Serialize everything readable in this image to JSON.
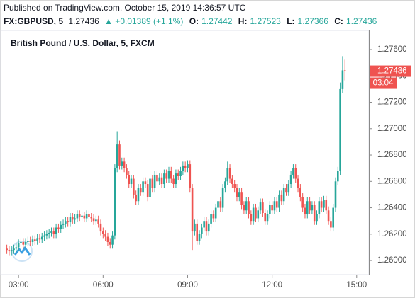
{
  "chart_data": {
    "type": "candlestick",
    "title": "Published on TradingView.com, October 15, 2019 14:36:57 UTC",
    "header": {
      "symbol": "FX:GBPUSD, 5",
      "last": "1.27436",
      "change": "▲ +0.01389 (+1.1%)",
      "ohlc": [
        {
          "label": "O:",
          "value": "1.27442"
        },
        {
          "label": "H:",
          "value": "1.27523"
        },
        {
          "label": "L:",
          "value": "1.27366"
        },
        {
          "label": "C:",
          "value": "1.27436"
        }
      ]
    },
    "legend": "British Pound / U.S. Dollar, 5, FXCM",
    "up_color": "#26a69a",
    "down_color": "#ef5350",
    "x": [
      155,
      160,
      165,
      170,
      175,
      180,
      185,
      190,
      195,
      200,
      205,
      210,
      215,
      220,
      225,
      230,
      235,
      240,
      245,
      250,
      255,
      260,
      265,
      270,
      275,
      280,
      285,
      290,
      295,
      300,
      305,
      310,
      315,
      320,
      325,
      330,
      335,
      340,
      345,
      350,
      355,
      360,
      365,
      370,
      375,
      380,
      385,
      390,
      395,
      400,
      405,
      410,
      415,
      420,
      425,
      430,
      435,
      440,
      445,
      450,
      455,
      460,
      465,
      470,
      475,
      480,
      485,
      490,
      495,
      500,
      505,
      510,
      515,
      520,
      525,
      530,
      535,
      540,
      545,
      550,
      555,
      560,
      565,
      570,
      575,
      580,
      585,
      590,
      595,
      600,
      605,
      610,
      615,
      620,
      625,
      630,
      635,
      640,
      645,
      650,
      655,
      660,
      665,
      670,
      675,
      680,
      685,
      690,
      695,
      700,
      705,
      710,
      715,
      720,
      725,
      730,
      735,
      740,
      745,
      750,
      755,
      760,
      765,
      770,
      775,
      780,
      785,
      790,
      795,
      800,
      805,
      810,
      815,
      820,
      825,
      830,
      835,
      840,
      845,
      850,
      855,
      860,
      865,
      870,
      875
    ],
    "open": [
      1.2609,
      1.2608,
      1.2607,
      1.2608,
      1.2609,
      1.261,
      1.2613,
      1.2614,
      1.2612,
      1.2614,
      1.2615,
      1.2614,
      1.2616,
      1.2615,
      1.2617,
      1.2616,
      1.2618,
      1.2619,
      1.262,
      1.2621,
      1.2622,
      1.262,
      1.2625,
      1.2624,
      1.2627,
      1.2628,
      1.263,
      1.2629,
      1.2633,
      1.2631,
      1.2632,
      1.2635,
      1.2633,
      1.2634,
      1.2632,
      1.2635,
      1.2633,
      1.2632,
      1.263,
      1.2631,
      1.2628,
      1.2622,
      1.262,
      1.2618,
      1.2614,
      1.2612,
      1.2619,
      1.267,
      1.2688,
      1.2672,
      1.2675,
      1.267,
      1.2665,
      1.2658,
      1.2662,
      1.265,
      1.2645,
      1.2655,
      1.2652,
      1.266,
      1.2658,
      1.2648,
      1.2662,
      1.2655,
      1.2665,
      1.266,
      1.2663,
      1.2658,
      1.2666,
      1.2662,
      1.2668,
      1.2662,
      1.2658,
      1.2666,
      1.2664,
      1.2668,
      1.2672,
      1.267,
      1.2673,
      1.2655,
      1.2622,
      1.2628,
      1.2615,
      1.262,
      1.2625,
      1.263,
      1.2622,
      1.2628,
      1.2635,
      1.2632,
      1.264,
      1.2645,
      1.264,
      1.2655,
      1.266,
      1.267,
      1.2662,
      1.2658,
      1.2655,
      1.2648,
      1.2652,
      1.2642,
      1.2638,
      1.2645,
      1.2635,
      1.263,
      1.264,
      1.2632,
      1.2638,
      1.2644,
      1.2636,
      1.263,
      1.2635,
      1.2642,
      1.2638,
      1.2645,
      1.264,
      1.265,
      1.2645,
      1.2655,
      1.2652,
      1.2658,
      1.2665,
      1.267,
      1.2662,
      1.2655,
      1.2648,
      1.264,
      1.2635,
      1.2645,
      1.2638,
      1.2642,
      1.263,
      1.2635,
      1.2645,
      1.264,
      1.2646,
      1.2638,
      1.263,
      1.2625,
      1.264,
      1.266,
      1.2668,
      1.273,
      1.27442
    ],
    "high": [
      1.2612,
      1.2611,
      1.2611,
      1.2612,
      1.2613,
      1.2616,
      1.2617,
      1.2617,
      1.2617,
      1.2618,
      1.2618,
      1.2619,
      1.2619,
      1.262,
      1.262,
      1.2621,
      1.2622,
      1.2623,
      1.2624,
      1.2625,
      1.2625,
      1.2628,
      1.2628,
      1.263,
      1.2631,
      1.2633,
      1.2633,
      1.2636,
      1.2636,
      1.2635,
      1.2638,
      1.2638,
      1.2637,
      1.2637,
      1.2638,
      1.2638,
      1.2636,
      1.2635,
      1.2634,
      1.2634,
      1.2631,
      1.2625,
      1.2623,
      1.2621,
      1.2617,
      1.2622,
      1.2673,
      1.2698,
      1.2691,
      1.2678,
      1.2678,
      1.2673,
      1.2668,
      1.2665,
      1.2665,
      1.2653,
      1.2658,
      1.2658,
      1.2663,
      1.2663,
      1.2661,
      1.2665,
      1.2665,
      1.2668,
      1.2668,
      1.2666,
      1.2666,
      1.2669,
      1.2669,
      1.2671,
      1.2671,
      1.2665,
      1.2669,
      1.2669,
      1.2671,
      1.2675,
      1.2675,
      1.2676,
      1.2676,
      1.2658,
      1.2631,
      1.2631,
      1.2623,
      1.2628,
      1.2633,
      1.2633,
      1.2631,
      1.2638,
      1.2638,
      1.2643,
      1.2648,
      1.2648,
      1.2658,
      1.2663,
      1.2675,
      1.2673,
      1.2665,
      1.2661,
      1.2658,
      1.2655,
      1.2655,
      1.2645,
      1.2648,
      1.2648,
      1.2638,
      1.2643,
      1.2643,
      1.2641,
      1.2647,
      1.2647,
      1.2639,
      1.2638,
      1.2645,
      1.2645,
      1.2648,
      1.2648,
      1.2653,
      1.2653,
      1.2658,
      1.2658,
      1.2661,
      1.2668,
      1.2673,
      1.2673,
      1.2665,
      1.2658,
      1.2651,
      1.2643,
      1.2648,
      1.2648,
      1.2645,
      1.2645,
      1.2638,
      1.2648,
      1.2648,
      1.2649,
      1.2649,
      1.2641,
      1.2633,
      1.2643,
      1.2663,
      1.2671,
      1.2735,
      1.2755,
      1.27523
    ],
    "low": [
      1.2605,
      1.2604,
      1.2604,
      1.2605,
      1.2606,
      1.2607,
      1.261,
      1.2609,
      1.2609,
      1.2611,
      1.2611,
      1.2611,
      1.2612,
      1.2612,
      1.2613,
      1.2613,
      1.2615,
      1.2616,
      1.2617,
      1.2618,
      1.2617,
      1.2617,
      1.2621,
      1.2621,
      1.2624,
      1.2625,
      1.2626,
      1.2626,
      1.2628,
      1.2628,
      1.2629,
      1.263,
      1.263,
      1.2629,
      1.2629,
      1.263,
      1.2629,
      1.2627,
      1.2627,
      1.2625,
      1.2619,
      1.2617,
      1.2615,
      1.2611,
      1.2609,
      1.2609,
      1.2616,
      1.2667,
      1.2669,
      1.2669,
      1.2667,
      1.2662,
      1.2655,
      1.2655,
      1.2647,
      1.2642,
      1.2642,
      1.2649,
      1.2649,
      1.2655,
      1.2645,
      1.2645,
      1.2652,
      1.2652,
      1.2657,
      1.2657,
      1.2655,
      1.2655,
      1.2659,
      1.2659,
      1.2659,
      1.2655,
      1.2655,
      1.2661,
      1.2661,
      1.2665,
      1.2667,
      1.2667,
      1.2652,
      1.2608,
      1.2619,
      1.2612,
      1.2612,
      1.2617,
      1.2622,
      1.2619,
      1.2619,
      1.2625,
      1.2629,
      1.2629,
      1.2637,
      1.2637,
      1.2637,
      1.2652,
      1.2657,
      1.2659,
      1.2655,
      1.2652,
      1.2645,
      1.2645,
      1.2639,
      1.2635,
      1.2635,
      1.2632,
      1.2627,
      1.2627,
      1.2629,
      1.2629,
      1.2635,
      1.2633,
      1.2627,
      1.2627,
      1.2632,
      1.2635,
      1.2635,
      1.2637,
      1.2637,
      1.2642,
      1.2642,
      1.2649,
      1.2649,
      1.2655,
      1.2662,
      1.2659,
      1.2652,
      1.2645,
      1.2637,
      1.2632,
      1.2632,
      1.2635,
      1.2635,
      1.2627,
      1.2627,
      1.2632,
      1.2637,
      1.2637,
      1.2635,
      1.2627,
      1.2622,
      1.2622,
      1.2637,
      1.2657,
      1.2665,
      1.2727,
      1.27366
    ],
    "close": [
      1.2608,
      1.2607,
      1.2608,
      1.2609,
      1.261,
      1.2613,
      1.2614,
      1.2612,
      1.2614,
      1.2615,
      1.2614,
      1.2616,
      1.2615,
      1.2617,
      1.2616,
      1.2618,
      1.2619,
      1.262,
      1.2621,
      1.2622,
      1.262,
      1.2625,
      1.2624,
      1.2627,
      1.2628,
      1.263,
      1.2629,
      1.2633,
      1.2631,
      1.2632,
      1.2635,
      1.2633,
      1.2634,
      1.2632,
      1.2635,
      1.2633,
      1.2632,
      1.263,
      1.2631,
      1.2628,
      1.2622,
      1.262,
      1.2618,
      1.2614,
      1.2612,
      1.2619,
      1.267,
      1.2688,
      1.2672,
      1.2675,
      1.267,
      1.2665,
      1.2658,
      1.2662,
      1.265,
      1.2645,
      1.2655,
      1.2652,
      1.266,
      1.2658,
      1.2648,
      1.2662,
      1.2655,
      1.2665,
      1.266,
      1.2663,
      1.2658,
      1.2666,
      1.2662,
      1.2668,
      1.2662,
      1.2658,
      1.2666,
      1.2664,
      1.2668,
      1.2672,
      1.267,
      1.2673,
      1.2655,
      1.2622,
      1.2628,
      1.2615,
      1.262,
      1.2625,
      1.263,
      1.2622,
      1.2628,
      1.2635,
      1.2632,
      1.264,
      1.2645,
      1.264,
      1.2655,
      1.266,
      1.267,
      1.2662,
      1.2658,
      1.2655,
      1.2648,
      1.2652,
      1.2642,
      1.2638,
      1.2645,
      1.2635,
      1.263,
      1.264,
      1.2632,
      1.2638,
      1.2644,
      1.2636,
      1.263,
      1.2635,
      1.2642,
      1.2638,
      1.2645,
      1.264,
      1.265,
      1.2645,
      1.2655,
      1.2652,
      1.2658,
      1.2665,
      1.267,
      1.2662,
      1.2655,
      1.2648,
      1.264,
      1.2635,
      1.2645,
      1.2638,
      1.2642,
      1.263,
      1.2635,
      1.2645,
      1.264,
      1.2646,
      1.2638,
      1.263,
      1.2625,
      1.264,
      1.266,
      1.2668,
      1.273,
      1.27442,
      1.27436
    ],
    "xlim": [
      142,
      926
    ],
    "xticks": [
      {
        "value": 180,
        "label": "03:00"
      },
      {
        "value": 360,
        "label": "06:00"
      },
      {
        "value": 540,
        "label": "09:00"
      },
      {
        "value": 720,
        "label": "12:00"
      },
      {
        "value": 900,
        "label": "15:00"
      }
    ],
    "ylim": [
      1.25893,
      1.27745
    ],
    "yticks": [
      {
        "value": 1.26,
        "label": "1.26000"
      },
      {
        "value": 1.262,
        "label": "1.26200"
      },
      {
        "value": 1.264,
        "label": "1.26400"
      },
      {
        "value": 1.266,
        "label": "1.26600"
      },
      {
        "value": 1.268,
        "label": "1.26800"
      },
      {
        "value": 1.27,
        "label": "1.27000"
      },
      {
        "value": 1.272,
        "label": "1.27200"
      },
      {
        "value": 1.274,
        "label": "1.27400"
      },
      {
        "value": 1.276,
        "label": "1.27600"
      }
    ],
    "price_line": {
      "value": 1.27436,
      "label": "1.27436",
      "countdown": "03:04"
    },
    "grid": false
  }
}
